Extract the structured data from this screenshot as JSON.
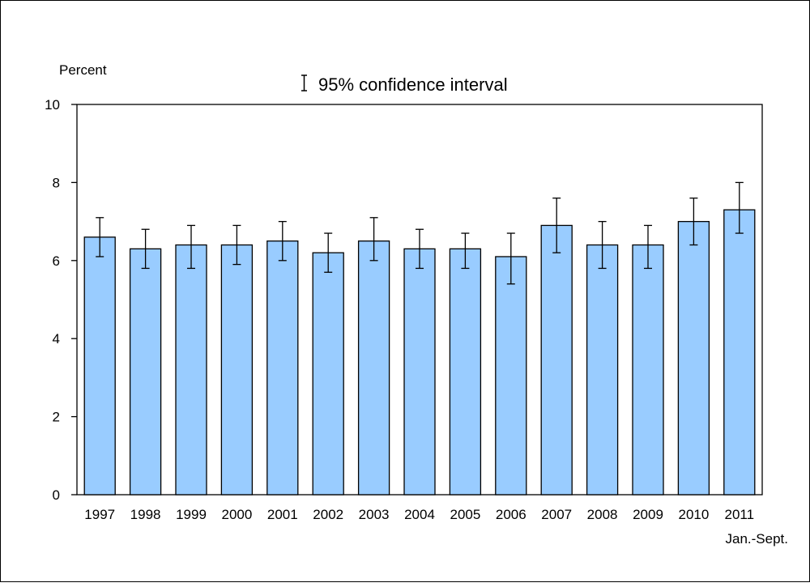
{
  "chart_data": {
    "type": "bar",
    "ylabel": "Percent",
    "legend_label": "95% confidence interval",
    "x_note": "Jan.-Sept.",
    "categories": [
      "1997",
      "1998",
      "1999",
      "2000",
      "2001",
      "2002",
      "2003",
      "2004",
      "2005",
      "2006",
      "2007",
      "2008",
      "2009",
      "2010",
      "2011"
    ],
    "values": [
      6.6,
      6.3,
      6.4,
      6.4,
      6.5,
      6.2,
      6.5,
      6.3,
      6.3,
      6.1,
      6.9,
      6.4,
      6.4,
      7.0,
      7.3
    ],
    "error_low": [
      6.1,
      5.8,
      5.8,
      5.9,
      6.0,
      5.7,
      6.0,
      5.8,
      5.8,
      5.4,
      6.2,
      5.8,
      5.8,
      6.4,
      6.7
    ],
    "error_high": [
      7.1,
      6.8,
      6.9,
      6.9,
      7.0,
      6.7,
      7.1,
      6.8,
      6.7,
      6.7,
      7.6,
      7.0,
      6.9,
      7.6,
      8.0
    ],
    "ylim": [
      0,
      10
    ],
    "yticks": [
      "0",
      "2",
      "4",
      "6",
      "8",
      "10"
    ],
    "grid": false,
    "legend_position": "top-center",
    "colors": {
      "bar_fill": "#99CCFF",
      "bar_stroke": "#000000"
    }
  }
}
